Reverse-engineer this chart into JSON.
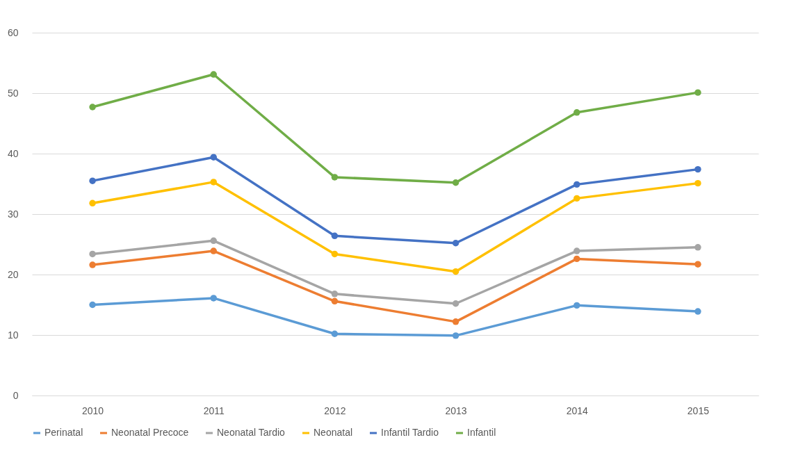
{
  "chart_data": {
    "type": "line",
    "categories": [
      "2010",
      "2011",
      "2012",
      "2013",
      "2014",
      "2015"
    ],
    "series": [
      {
        "name": "Perinatal",
        "color": "#5b9bd5",
        "values": [
          15.0,
          16.1,
          10.2,
          9.9,
          14.9,
          13.9
        ]
      },
      {
        "name": "Neonatal Precoce",
        "color": "#ed7d31",
        "values": [
          21.6,
          23.9,
          15.6,
          12.2,
          22.6,
          21.7
        ]
      },
      {
        "name": "Neonatal Tardio",
        "color": "#a5a5a5",
        "values": [
          23.4,
          25.6,
          16.8,
          15.2,
          23.9,
          24.5
        ]
      },
      {
        "name": "Neonatal",
        "color": "#ffc000",
        "values": [
          31.8,
          35.3,
          23.4,
          20.5,
          32.6,
          35.1
        ]
      },
      {
        "name": "Infantil Tardio",
        "color": "#4472c4",
        "values": [
          35.5,
          39.4,
          26.4,
          25.2,
          34.9,
          37.4
        ]
      },
      {
        "name": "Infantil",
        "color": "#70ad47",
        "values": [
          47.7,
          53.1,
          36.1,
          35.2,
          46.8,
          50.1
        ]
      }
    ],
    "ylim": [
      0,
      60
    ],
    "yticks": [
      0,
      10,
      20,
      30,
      40,
      50,
      60
    ],
    "grid": "y",
    "legend": "bottom",
    "marker": "circle",
    "line_style": "solid"
  }
}
